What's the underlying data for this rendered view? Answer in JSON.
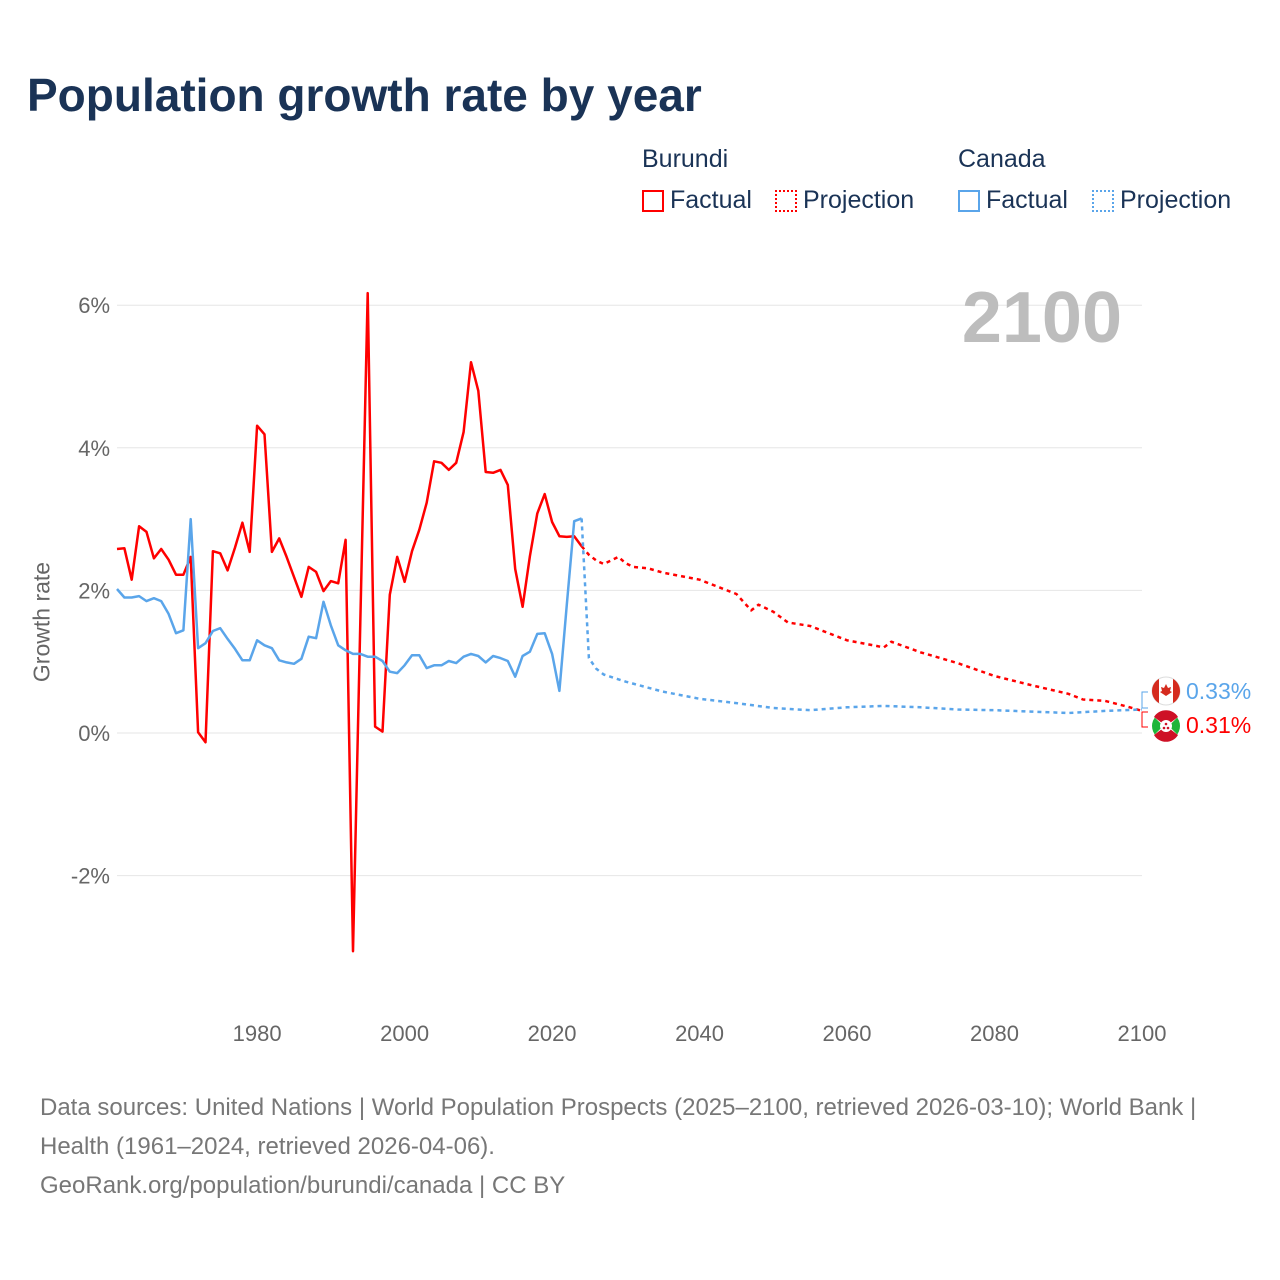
{
  "title": "Population growth rate by year",
  "legend": {
    "groups": [
      {
        "name": "Burundi",
        "factual": "Factual",
        "projection": "Projection",
        "color": "#ff0000"
      },
      {
        "name": "Canada",
        "factual": "Factual",
        "projection": "Projection",
        "color": "#5aa5ea"
      }
    ]
  },
  "current_year": "2100",
  "end_labels": {
    "canada": "0.33%",
    "burundi": "0.31%"
  },
  "footer": {
    "sources": "Data sources: United Nations | World Population Prospects (2025–2100, retrieved 2026-03-10); World Bank | Health (1961–2024, retrieved 2026-04-06).",
    "credit": "GeoRank.org/population/burundi/canada | CC BY"
  },
  "chart_data": {
    "type": "line",
    "title": "Population growth rate by year",
    "xlabel": "",
    "ylabel": "Growth rate",
    "xlim": [
      1961,
      2100
    ],
    "ylim": [
      -3.8,
      6.5
    ],
    "xticks": [
      1980,
      2000,
      2020,
      2040,
      2060,
      2080,
      2100
    ],
    "xtick_labels": [
      "1980",
      "2000",
      "2020",
      "2040",
      "2060",
      "2080",
      "2100"
    ],
    "yticks": [
      -2,
      0,
      2,
      4,
      6
    ],
    "ytick_labels": [
      "-2%",
      "0%",
      "2%",
      "4%",
      "6%"
    ],
    "grid": true,
    "series": [
      {
        "name": "Burundi Factual",
        "color": "#ff0000",
        "style": "solid",
        "start": 1961,
        "values": [
          2.58,
          2.59,
          2.15,
          2.9,
          2.82,
          2.45,
          2.58,
          2.43,
          2.22,
          2.22,
          2.47,
          0.01,
          -0.13,
          2.55,
          2.52,
          2.28,
          2.6,
          2.95,
          2.54,
          4.31,
          4.19,
          2.54,
          2.73,
          2.47,
          2.19,
          1.91,
          2.33,
          2.26,
          1.99,
          2.13,
          2.1,
          2.71,
          -3.06,
          1.55,
          6.17,
          0.09,
          0.02,
          1.94,
          2.47,
          2.12,
          2.55,
          2.85,
          3.23,
          3.81,
          3.79,
          3.69,
          3.79,
          4.22,
          5.2,
          4.8,
          3.66,
          3.65,
          3.69,
          3.48,
          2.3,
          1.77,
          2.48,
          3.08,
          3.35,
          2.96,
          2.76,
          2.75,
          2.76,
          2.62
        ]
      },
      {
        "name": "Canada Factual",
        "color": "#5aa5ea",
        "style": "solid",
        "start": 1961,
        "values": [
          2.02,
          1.9,
          1.9,
          1.92,
          1.85,
          1.89,
          1.85,
          1.67,
          1.4,
          1.44,
          3.0,
          1.19,
          1.26,
          1.43,
          1.47,
          1.32,
          1.18,
          1.02,
          1.02,
          1.3,
          1.23,
          1.19,
          1.02,
          0.99,
          0.97,
          1.04,
          1.35,
          1.33,
          1.84,
          1.51,
          1.23,
          1.16,
          1.11,
          1.11,
          1.07,
          1.07,
          1.01,
          0.86,
          0.84,
          0.95,
          1.09,
          1.09,
          0.91,
          0.95,
          0.95,
          1.01,
          0.98,
          1.07,
          1.11,
          1.08,
          0.99,
          1.08,
          1.05,
          1.01,
          0.79,
          1.08,
          1.14,
          1.39,
          1.4,
          1.11,
          0.59,
          1.8,
          2.97,
          3.01
        ]
      },
      {
        "name": "Burundi Projection",
        "color": "#ff0000",
        "style": "dotted",
        "x": [
          2024,
          2025,
          2026,
          2027,
          2028,
          2029,
          2030,
          2031,
          2033,
          2035,
          2040,
          2045,
          2047,
          2048,
          2050,
          2052,
          2055,
          2060,
          2065,
          2066,
          2070,
          2075,
          2080,
          2085,
          2090,
          2092,
          2095,
          2098,
          2100
        ],
        "y": [
          2.62,
          2.5,
          2.42,
          2.37,
          2.42,
          2.47,
          2.38,
          2.33,
          2.31,
          2.25,
          2.15,
          1.95,
          1.72,
          1.8,
          1.7,
          1.55,
          1.5,
          1.3,
          1.2,
          1.28,
          1.13,
          0.98,
          0.8,
          0.67,
          0.55,
          0.47,
          0.45,
          0.37,
          0.31
        ]
      },
      {
        "name": "Canada Projection",
        "color": "#5aa5ea",
        "style": "dotted",
        "x": [
          2024,
          2025,
          2026,
          2027,
          2030,
          2035,
          2040,
          2045,
          2050,
          2055,
          2060,
          2065,
          2070,
          2075,
          2080,
          2085,
          2090,
          2095,
          2100
        ],
        "y": [
          3.01,
          1.05,
          0.9,
          0.82,
          0.72,
          0.58,
          0.48,
          0.42,
          0.35,
          0.32,
          0.36,
          0.38,
          0.36,
          0.33,
          0.32,
          0.3,
          0.28,
          0.31,
          0.33
        ]
      }
    ]
  }
}
